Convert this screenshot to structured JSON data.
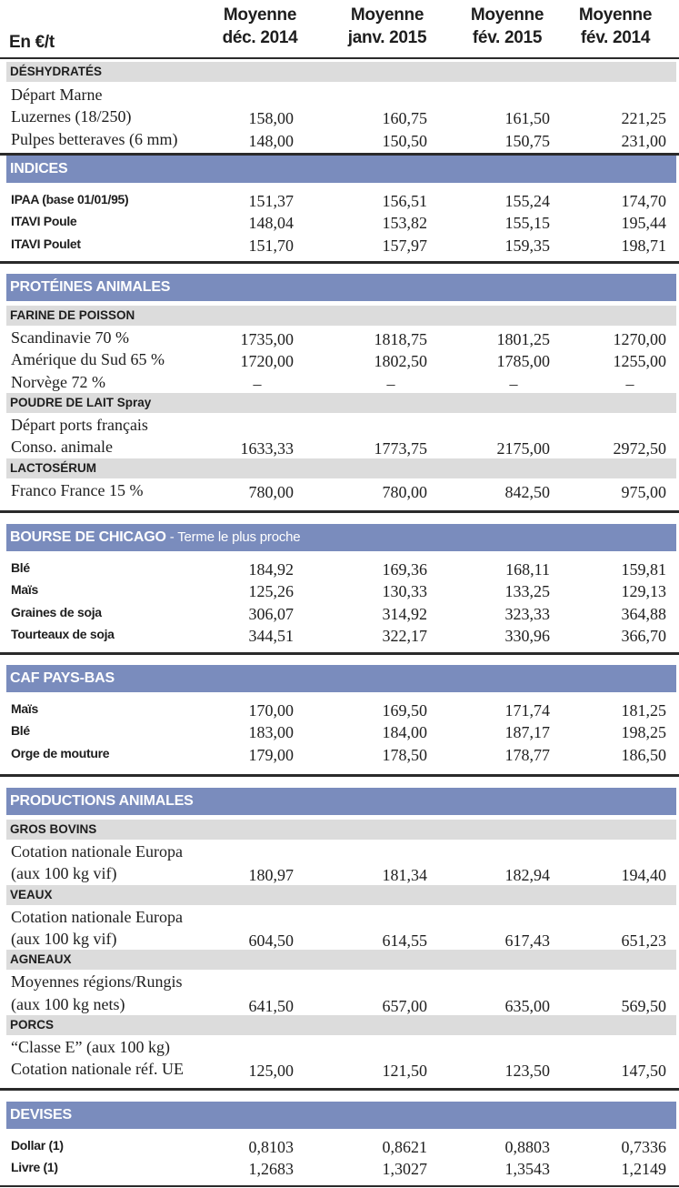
{
  "header": {
    "unit": "En €/t",
    "columns": [
      {
        "line1": "Moyenne",
        "line2": "déc. 2014"
      },
      {
        "line1": "Moyenne",
        "line2": "janv. 2015"
      },
      {
        "line1": "Moyenne",
        "line2": "fév. 2015"
      },
      {
        "line1": "Moyenne",
        "line2": "fév. 2014"
      }
    ]
  },
  "colors": {
    "band": "#7a8cbd",
    "subheader": "#dcdcdc",
    "rule": "#2a2a2a"
  },
  "sections": [
    {
      "kind": "subheader",
      "title": "DÉSHYDRATÉS",
      "rows": [
        {
          "label": "Départ Marne",
          "values": [
            "",
            "",
            "",
            ""
          ]
        },
        {
          "label": "Luzernes (18/250)",
          "values": [
            "158,00",
            "160,75",
            "161,50",
            "221,25"
          ]
        },
        {
          "label": "Pulpes betteraves (6 mm)",
          "values": [
            "148,00",
            "150,50",
            "150,75",
            "231,00"
          ]
        }
      ]
    },
    {
      "kind": "band",
      "title": "INDICES",
      "rows": [
        {
          "label": "IPAA (base 01/01/95)",
          "values": [
            "151,37",
            "156,51",
            "155,24",
            "174,70"
          ]
        },
        {
          "label": "ITAVI Poule",
          "values": [
            "148,04",
            "153,82",
            "155,15",
            "195,44"
          ]
        },
        {
          "label": "ITAVI Poulet",
          "values": [
            "151,70",
            "157,97",
            "159,35",
            "198,71"
          ]
        }
      ]
    },
    {
      "kind": "band",
      "title": "PROTÉINES ANIMALES",
      "groups": [
        {
          "title": "FARINE DE POISSON",
          "rows": [
            {
              "label": "Scandinavie 70 %",
              "values": [
                "1735,00",
                "1818,75",
                "1801,25",
                "1270,00"
              ]
            },
            {
              "label": "Amérique du Sud 65 %",
              "values": [
                "1720,00",
                "1802,50",
                "1785,00",
                "1255,00"
              ]
            },
            {
              "label": "Norvège 72 %",
              "values": [
                "–",
                "–",
                "–",
                "–"
              ]
            }
          ]
        },
        {
          "title": "POUDRE DE LAIT Spray",
          "rows": [
            {
              "label": "Départ ports français",
              "values": [
                "",
                "",
                "",
                ""
              ]
            },
            {
              "label": "Conso. animale",
              "values": [
                "1633,33",
                "1773,75",
                "2175,00",
                "2972,50"
              ]
            }
          ]
        },
        {
          "title": "LACTOSÉRUM",
          "rows": [
            {
              "label": "Franco France 15 %",
              "values": [
                "780,00",
                "780,00",
                "842,50",
                "975,00"
              ]
            }
          ]
        }
      ]
    },
    {
      "kind": "band",
      "title": "BOURSE DE CHICAGO",
      "subtitle": " - Terme le plus proche",
      "rows": [
        {
          "label": "Blé",
          "values": [
            "184,92",
            "169,36",
            "168,11",
            "159,81"
          ]
        },
        {
          "label": "Maïs",
          "values": [
            "125,26",
            "130,33",
            "133,25",
            "129,13"
          ]
        },
        {
          "label": "Graines de soja",
          "values": [
            "306,07",
            "314,92",
            "323,33",
            "364,88"
          ]
        },
        {
          "label": "Tourteaux de soja",
          "values": [
            "344,51",
            "322,17",
            "330,96",
            "366,70"
          ]
        }
      ]
    },
    {
      "kind": "band",
      "title": "CAF PAYS-BAS",
      "rows": [
        {
          "label": "Maïs",
          "values": [
            "170,00",
            "169,50",
            "171,74",
            "181,25"
          ]
        },
        {
          "label": "Blé",
          "values": [
            "183,00",
            "184,00",
            "187,17",
            "198,25"
          ]
        },
        {
          "label": "Orge de mouture",
          "values": [
            "179,00",
            "178,50",
            "178,77",
            "186,50"
          ]
        }
      ]
    },
    {
      "kind": "band",
      "title": "PRODUCTIONS ANIMALES",
      "groups": [
        {
          "title": "GROS BOVINS",
          "rows": [
            {
              "label": "Cotation nationale Europa",
              "values": [
                "",
                "",
                "",
                ""
              ]
            },
            {
              "label": "(aux 100 kg vif)",
              "values": [
                "180,97",
                "181,34",
                "182,94",
                "194,40"
              ]
            }
          ]
        },
        {
          "title": "VEAUX",
          "rows": [
            {
              "label": "Cotation nationale Europa",
              "values": [
                "",
                "",
                "",
                ""
              ]
            },
            {
              "label": "(aux 100 kg vif)",
              "values": [
                "604,50",
                "614,55",
                "617,43",
                "651,23"
              ]
            }
          ]
        },
        {
          "title": "AGNEAUX",
          "rows": [
            {
              "label": "Moyennes régions/Rungis",
              "values": [
                "",
                "",
                "",
                ""
              ]
            },
            {
              "label": "(aux 100 kg nets)",
              "values": [
                "641,50",
                "657,00",
                "635,00",
                "569,50"
              ]
            }
          ]
        },
        {
          "title": "PORCS",
          "rows": [
            {
              "label": "“Classe E” (aux 100 kg)",
              "values": [
                "",
                "",
                "",
                ""
              ]
            },
            {
              "label": "Cotation nationale réf. UE",
              "values": [
                "125,00",
                "121,50",
                "123,50",
                "147,50"
              ]
            }
          ]
        }
      ]
    },
    {
      "kind": "band",
      "title": "DEVISES",
      "rows": [
        {
          "label": "Dollar (1)",
          "values": [
            "0,8103",
            "0,8621",
            "0,8803",
            "0,7336"
          ]
        },
        {
          "label": "Livre (1)",
          "values": [
            "1,2683",
            "1,3027",
            "1,3543",
            "1,2149"
          ]
        }
      ]
    }
  ]
}
